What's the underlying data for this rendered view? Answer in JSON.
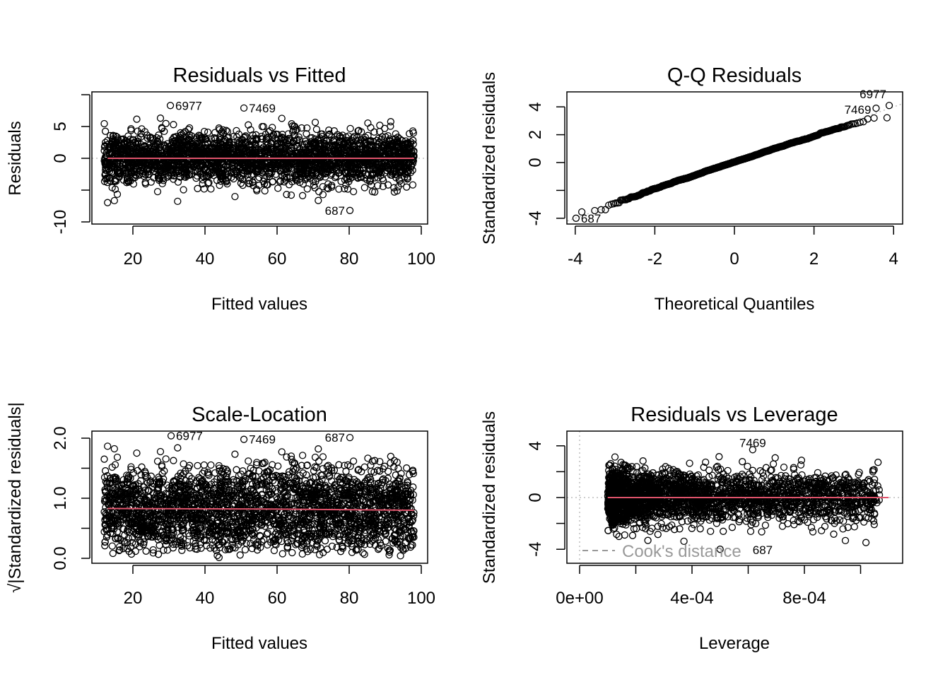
{
  "chart_data": [
    {
      "type": "scatter",
      "title": "Residuals vs Fitted",
      "xlabel": "Fitted values",
      "ylabel": "Residuals",
      "x_ticks": [
        20,
        40,
        60,
        80,
        100
      ],
      "x_tick_labels": [
        "20",
        "40",
        "60",
        "80",
        "100"
      ],
      "y_ticks": [
        -10,
        -5,
        0,
        5,
        10
      ],
      "y_tick_labels": [
        "-10",
        "",
        "0",
        "5",
        ""
      ],
      "cloud": {
        "x_range": [
          12,
          98
        ],
        "y_sd": 2.0
      },
      "reference_line": {
        "y": 0,
        "color": "#BEBEBE",
        "style": "dotted"
      },
      "smoother": {
        "color": "#DF536B",
        "x": [
          13,
          98
        ],
        "y": [
          0,
          0
        ]
      },
      "labeled_points": [
        {
          "label": "6977",
          "x": 30.4,
          "y": 8.3,
          "side": "right"
        },
        {
          "label": "7469",
          "x": 50.8,
          "y": 7.9,
          "side": "right"
        },
        {
          "label": "687",
          "x": 80.2,
          "y": -8.2,
          "side": "left"
        }
      ]
    },
    {
      "type": "scatter",
      "title": "Q-Q Residuals",
      "xlabel": "Theoretical Quantiles",
      "ylabel": "Standardized residuals",
      "x_ticks": [
        -4,
        -2,
        0,
        2,
        4
      ],
      "x_tick_labels": [
        "-4",
        "-2",
        "0",
        "2",
        "4"
      ],
      "y_ticks": [
        -4,
        -2,
        0,
        2,
        4
      ],
      "y_tick_labels": [
        "-4",
        "",
        "0",
        "2",
        "4"
      ],
      "reference_line": {
        "slope": 1,
        "intercept": 0,
        "color": "#BEBEBE",
        "style": "dotted"
      },
      "labeled_points": [
        {
          "label": "6977",
          "x": 3.89,
          "y": 4.1,
          "side": "left"
        },
        {
          "label": "7469",
          "x": 3.56,
          "y": 3.9,
          "side": "left"
        },
        {
          "label": "687",
          "x": -3.98,
          "y": -4.0,
          "side": "right"
        }
      ]
    },
    {
      "type": "scatter",
      "title": "Scale-Location",
      "xlabel": "Fitted values",
      "ylabel": "√|Standardized residuals|",
      "x_ticks": [
        20,
        40,
        60,
        80,
        100
      ],
      "x_tick_labels": [
        "20",
        "40",
        "60",
        "80",
        "100"
      ],
      "y_ticks": [
        0,
        0.5,
        1,
        1.5,
        2
      ],
      "y_tick_labels": [
        "0.0",
        "",
        "1.0",
        "",
        "2.0"
      ],
      "cloud": {
        "x_range": [
          12,
          98
        ]
      },
      "smoother": {
        "color": "#DF536B",
        "x": [
          13,
          58,
          98
        ],
        "y": [
          0.83,
          0.82,
          0.8
        ]
      },
      "labeled_points": [
        {
          "label": "6977",
          "x": 30.6,
          "y": 2.04,
          "side": "right"
        },
        {
          "label": "7469",
          "x": 50.8,
          "y": 1.98,
          "side": "right"
        },
        {
          "label": "687",
          "x": 80.2,
          "y": 2.01,
          "side": "left"
        }
      ]
    },
    {
      "type": "scatter",
      "title": "Residuals vs Leverage",
      "xlabel": "Leverage",
      "ylabel": "Standardized residuals",
      "x_ticks": [
        0,
        0.0002,
        0.0004,
        0.0006,
        0.0008,
        0.001
      ],
      "x_tick_labels": [
        "0e+00",
        "",
        "4e-04",
        "",
        "8e-04",
        ""
      ],
      "y_ticks": [
        -4,
        -2,
        0,
        2,
        4
      ],
      "y_tick_labels": [
        "-4",
        "",
        "0",
        "",
        "4"
      ],
      "cloud": {
        "x_range": [
          0.0001,
          0.0011
        ]
      },
      "reference_lines": [
        {
          "x": 0,
          "color": "#BEBEBE",
          "style": "dotted"
        },
        {
          "y": 0,
          "color": "#BEBEBE",
          "style": "dotted"
        }
      ],
      "smoother": {
        "color": "#DF536B",
        "x": [
          0.0001,
          0.0011
        ],
        "y": [
          0,
          0
        ]
      },
      "legend": {
        "label": "Cook's distance",
        "color": "#999999",
        "style": "dashed",
        "placement": "bottom-left"
      },
      "labeled_points": [
        {
          "label": "7469",
          "x": 0.000616,
          "y": 3.7,
          "side": "top"
        },
        {
          "label": "687",
          "x": 0.0005,
          "y": -4.0,
          "side": "bottom"
        }
      ]
    }
  ]
}
